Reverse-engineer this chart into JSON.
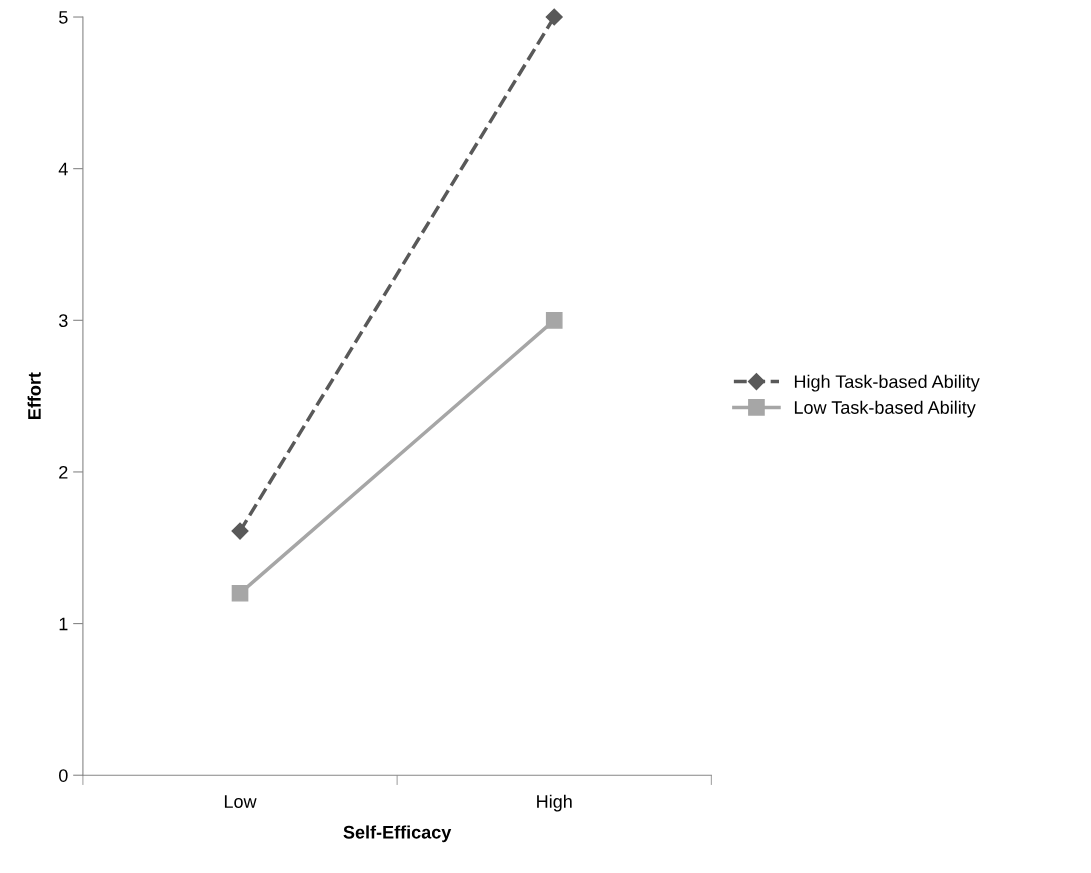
{
  "chart_data": {
    "type": "line",
    "xlabel": "Self-Efficacy",
    "ylabel": "Effort",
    "categories": [
      "Low",
      "High"
    ],
    "series": [
      {
        "name": "High Task-based Ability",
        "color": "#595959",
        "values": [
          1.61,
          5.0
        ],
        "marker": "diamond",
        "line_style": "dashed"
      },
      {
        "name": "Low Task-based Ability",
        "color": "#a6a6a6",
        "values": [
          1.2,
          3.0
        ],
        "marker": "square",
        "line_style": "solid"
      }
    ],
    "ylim": [
      0,
      5
    ],
    "yticks": [
      0,
      1,
      2,
      3,
      4,
      5
    ],
    "grid": false,
    "legend": "right"
  }
}
